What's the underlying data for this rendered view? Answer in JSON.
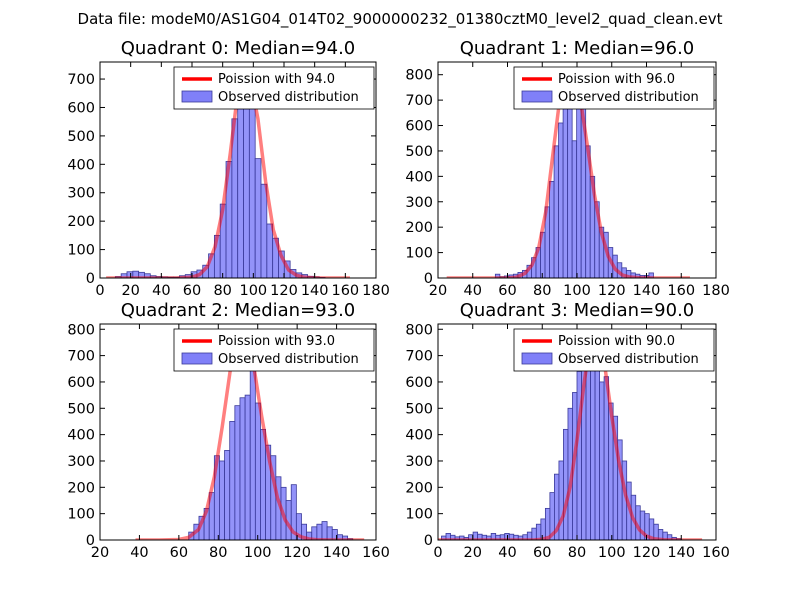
{
  "figure": {
    "suptitle": "Data file: modeM0/AS1G04_014T02_9000000232_01380cztM0_level2_quad_clean.evt"
  },
  "colors": {
    "bar_fill": "#8080f8",
    "bar_edge": "#3a3a9a",
    "poisson": "#ff0000",
    "axis": "#000000"
  },
  "chart_data": [
    {
      "type": "bar",
      "title": "Quadrant 0: Median=94.0",
      "xlim": [
        0,
        180
      ],
      "ylim": [
        0,
        760
      ],
      "xticks": [
        0,
        20,
        40,
        60,
        80,
        100,
        120,
        140,
        160,
        180
      ],
      "yticks": [
        0,
        100,
        200,
        300,
        400,
        500,
        600,
        700
      ],
      "legend": {
        "placement": "top-right",
        "poisson_label": "Poission with 94.0",
        "hist_label": "Observed distribution"
      },
      "bin_width": 3.8,
      "bin_starts": [
        10.0,
        13.8,
        17.6,
        21.4,
        25.2,
        29.0,
        32.8,
        36.6,
        40.4,
        44.2,
        48.0,
        51.8,
        55.6,
        59.4,
        63.2,
        67.0,
        70.8,
        74.6,
        78.4,
        82.2,
        86.0,
        89.8,
        93.6,
        97.4,
        101.2,
        105.0,
        108.8,
        112.6,
        116.4,
        120.2,
        124.0,
        127.8,
        131.6,
        135.4,
        139.2,
        143.0
      ],
      "counts": [
        5,
        15,
        22,
        24,
        20,
        15,
        8,
        5,
        4,
        3,
        3,
        8,
        12,
        22,
        28,
        45,
        85,
        150,
        260,
        410,
        560,
        600,
        680,
        620,
        420,
        330,
        190,
        140,
        95,
        60,
        30,
        18,
        12,
        6,
        4,
        2
      ],
      "poisson_x": [
        4,
        10,
        20,
        30,
        40,
        50,
        60,
        65,
        70,
        75,
        80,
        85,
        90,
        94,
        98,
        103,
        108,
        113,
        118,
        123,
        128,
        133,
        138,
        145,
        155,
        163
      ],
      "poisson_y": [
        0,
        0,
        0,
        0,
        0,
        0,
        3,
        12,
        40,
        110,
        240,
        440,
        660,
        730,
        700,
        560,
        340,
        170,
        80,
        28,
        10,
        3,
        1,
        0,
        0,
        0
      ]
    },
    {
      "type": "bar",
      "title": "Quadrant 1: Median=96.0",
      "xlim": [
        20,
        180
      ],
      "ylim": [
        0,
        850
      ],
      "xticks": [
        20,
        40,
        60,
        80,
        100,
        120,
        140,
        160,
        180
      ],
      "yticks": [
        0,
        100,
        200,
        300,
        400,
        500,
        600,
        700,
        800
      ],
      "legend": {
        "placement": "top-right",
        "poisson_label": "Poission with 96.0",
        "hist_label": "Observed distribution"
      },
      "bin_width": 2.6,
      "bin_starts": [
        53.0,
        55.6,
        58.2,
        60.8,
        63.4,
        66.0,
        68.6,
        71.2,
        73.8,
        76.4,
        79.0,
        81.6,
        84.2,
        86.8,
        89.4,
        92.0,
        94.6,
        97.2,
        99.8,
        102.4,
        105.0,
        107.6,
        110.2,
        112.8,
        115.4,
        118.0,
        120.6,
        123.2,
        125.8,
        128.4,
        131.0,
        133.6,
        136.2,
        138.8,
        141.4
      ],
      "counts": [
        15,
        5,
        8,
        12,
        15,
        22,
        30,
        50,
        80,
        120,
        180,
        280,
        380,
        520,
        610,
        720,
        810,
        540,
        700,
        720,
        520,
        400,
        300,
        200,
        180,
        120,
        90,
        60,
        40,
        30,
        20,
        15,
        10,
        10,
        20
      ],
      "poisson_x": [
        25,
        40,
        60,
        65,
        70,
        74,
        78,
        82,
        86,
        90,
        93,
        96,
        99,
        102,
        106,
        110,
        114,
        118,
        122,
        126,
        130,
        136,
        145,
        155,
        165
      ],
      "poisson_y": [
        0,
        0,
        0,
        3,
        18,
        50,
        120,
        260,
        480,
        700,
        780,
        805,
        780,
        700,
        520,
        330,
        180,
        85,
        35,
        12,
        4,
        1,
        0,
        0,
        0
      ]
    },
    {
      "type": "bar",
      "title": "Quadrant 2: Median=93.0",
      "xlim": [
        20,
        160
      ],
      "ylim": [
        0,
        820
      ],
      "xticks": [
        20,
        40,
        60,
        80,
        100,
        120,
        140,
        160
      ],
      "yticks": [
        0,
        100,
        200,
        300,
        400,
        500,
        600,
        700,
        800
      ],
      "legend": {
        "placement": "top-right",
        "poisson_label": "Poission with 93.0",
        "hist_label": "Observed distribution"
      },
      "bin_width": 2.6,
      "bin_starts": [
        65.0,
        67.6,
        70.2,
        72.8,
        75.4,
        78.0,
        80.6,
        83.2,
        85.8,
        88.4,
        91.0,
        93.6,
        96.2,
        98.8,
        101.4,
        104.0,
        106.6,
        109.2,
        111.8,
        114.4,
        117.0,
        119.6,
        122.2,
        124.8,
        127.4,
        130.0,
        132.6,
        135.2,
        137.8,
        140.4,
        143.0,
        145.6
      ],
      "counts": [
        30,
        60,
        90,
        120,
        180,
        320,
        300,
        340,
        450,
        510,
        540,
        550,
        680,
        520,
        420,
        360,
        320,
        240,
        200,
        150,
        210,
        100,
        60,
        30,
        50,
        60,
        70,
        50,
        40,
        20,
        15,
        5
      ],
      "poisson_x": [
        38,
        50,
        60,
        65,
        70,
        74,
        78,
        82,
        86,
        89,
        92,
        95,
        98,
        102,
        106,
        110,
        114,
        118,
        122,
        126,
        130,
        136,
        145,
        154
      ],
      "poisson_y": [
        0,
        0,
        2,
        10,
        40,
        110,
        240,
        430,
        640,
        760,
        790,
        760,
        660,
        470,
        300,
        160,
        75,
        30,
        12,
        4,
        1,
        0,
        0,
        0
      ]
    },
    {
      "type": "bar",
      "title": "Quadrant 3: Median=90.0",
      "xlim": [
        0,
        160
      ],
      "ylim": [
        0,
        820
      ],
      "xticks": [
        0,
        20,
        40,
        60,
        80,
        100,
        120,
        140,
        160
      ],
      "yticks": [
        0,
        100,
        200,
        300,
        400,
        500,
        600,
        700,
        800
      ],
      "legend": {
        "placement": "top-right",
        "poisson_label": "Poission with 90.0",
        "hist_label": "Observed distribution"
      },
      "bin_width": 2.6,
      "bin_starts": [
        2.0,
        4.6,
        7.2,
        9.8,
        12.4,
        15.0,
        17.6,
        20.2,
        22.8,
        25.4,
        28.0,
        30.6,
        33.2,
        35.8,
        38.4,
        41.0,
        43.6,
        46.2,
        48.8,
        51.4,
        54.0,
        56.6,
        59.2,
        61.8,
        64.4,
        67.0,
        69.6,
        72.2,
        74.8,
        77.4,
        80.0,
        82.6,
        85.2,
        87.8,
        90.4,
        93.0,
        95.6,
        98.2,
        100.8,
        103.4,
        106.0,
        108.6,
        111.2,
        113.8,
        116.4,
        119.0,
        121.6,
        124.2,
        126.8,
        129.4,
        132.0,
        134.6,
        137.2
      ],
      "counts": [
        15,
        25,
        18,
        12,
        15,
        10,
        20,
        30,
        22,
        18,
        15,
        25,
        18,
        20,
        25,
        22,
        18,
        15,
        20,
        30,
        45,
        60,
        80,
        120,
        180,
        250,
        300,
        420,
        500,
        560,
        640,
        720,
        700,
        750,
        680,
        600,
        620,
        520,
        470,
        380,
        300,
        220,
        170,
        130,
        110,
        100,
        80,
        60,
        40,
        30,
        20,
        10,
        5
      ],
      "poisson_x": [
        0,
        20,
        40,
        55,
        60,
        64,
        68,
        72,
        76,
        80,
        84,
        87,
        90,
        93,
        96,
        100,
        104,
        108,
        112,
        116,
        120,
        124,
        130,
        140,
        152
      ],
      "poisson_y": [
        0,
        0,
        0,
        0,
        3,
        10,
        35,
        90,
        200,
        380,
        590,
        730,
        790,
        760,
        660,
        470,
        300,
        170,
        85,
        38,
        15,
        5,
        1,
        0,
        0
      ]
    }
  ]
}
